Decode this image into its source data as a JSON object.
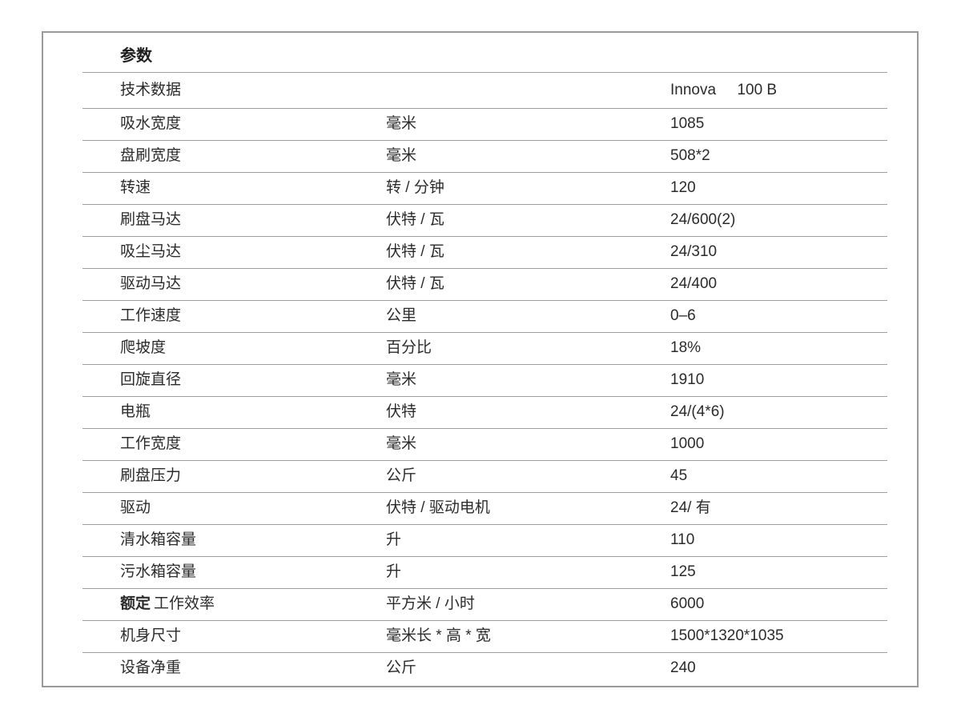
{
  "page": {
    "title": "参数"
  },
  "table": {
    "rows": [
      {
        "label": "技术数据",
        "unit": "",
        "value": "Innova     100 B"
      },
      {
        "label": "吸水宽度",
        "unit": "毫米",
        "value": "1085"
      },
      {
        "label": "盘刷宽度",
        "unit": "毫米",
        "value": "508*2"
      },
      {
        "label": "转速",
        "unit": "转 / 分钟",
        "value": "120"
      },
      {
        "label": "刷盘马达",
        "unit": "伏特 / 瓦",
        "value": "24/600(2)"
      },
      {
        "label": "吸尘马达",
        "unit": "伏特 / 瓦",
        "value": "24/310"
      },
      {
        "label": "驱动马达",
        "unit": "伏特 / 瓦",
        "value": "24/400"
      },
      {
        "label": "工作速度",
        "unit": "公里",
        "value": "0–6"
      },
      {
        "label": "爬坡度",
        "unit": "百分比",
        "value": "18%"
      },
      {
        "label": "回旋直径",
        "unit": "毫米",
        "value": "1910"
      },
      {
        "label": "电瓶",
        "unit": "伏特",
        "value": "24/(4*6)"
      },
      {
        "label": "工作宽度",
        "unit": "毫米",
        "value": "1000"
      },
      {
        "label": "刷盘压力",
        "unit": "公斤",
        "value": "45"
      },
      {
        "label": "驱动",
        "unit": "伏特 / 驱动电机",
        "value": "24/ 有"
      },
      {
        "label": "清水箱容量",
        "unit": "升",
        "value": "110"
      },
      {
        "label": "污水箱容量",
        "unit": "升",
        "value": "125"
      },
      {
        "label_strong": "额定",
        "label": "工作效率",
        "unit": "平方米 / 小时",
        "value": "6000"
      },
      {
        "label": "机身尺寸",
        "unit": "毫米长 * 高 * 宽",
        "value": "1500*1320*1035"
      },
      {
        "label": "设备净重",
        "unit": "公斤",
        "value": "240"
      }
    ]
  }
}
